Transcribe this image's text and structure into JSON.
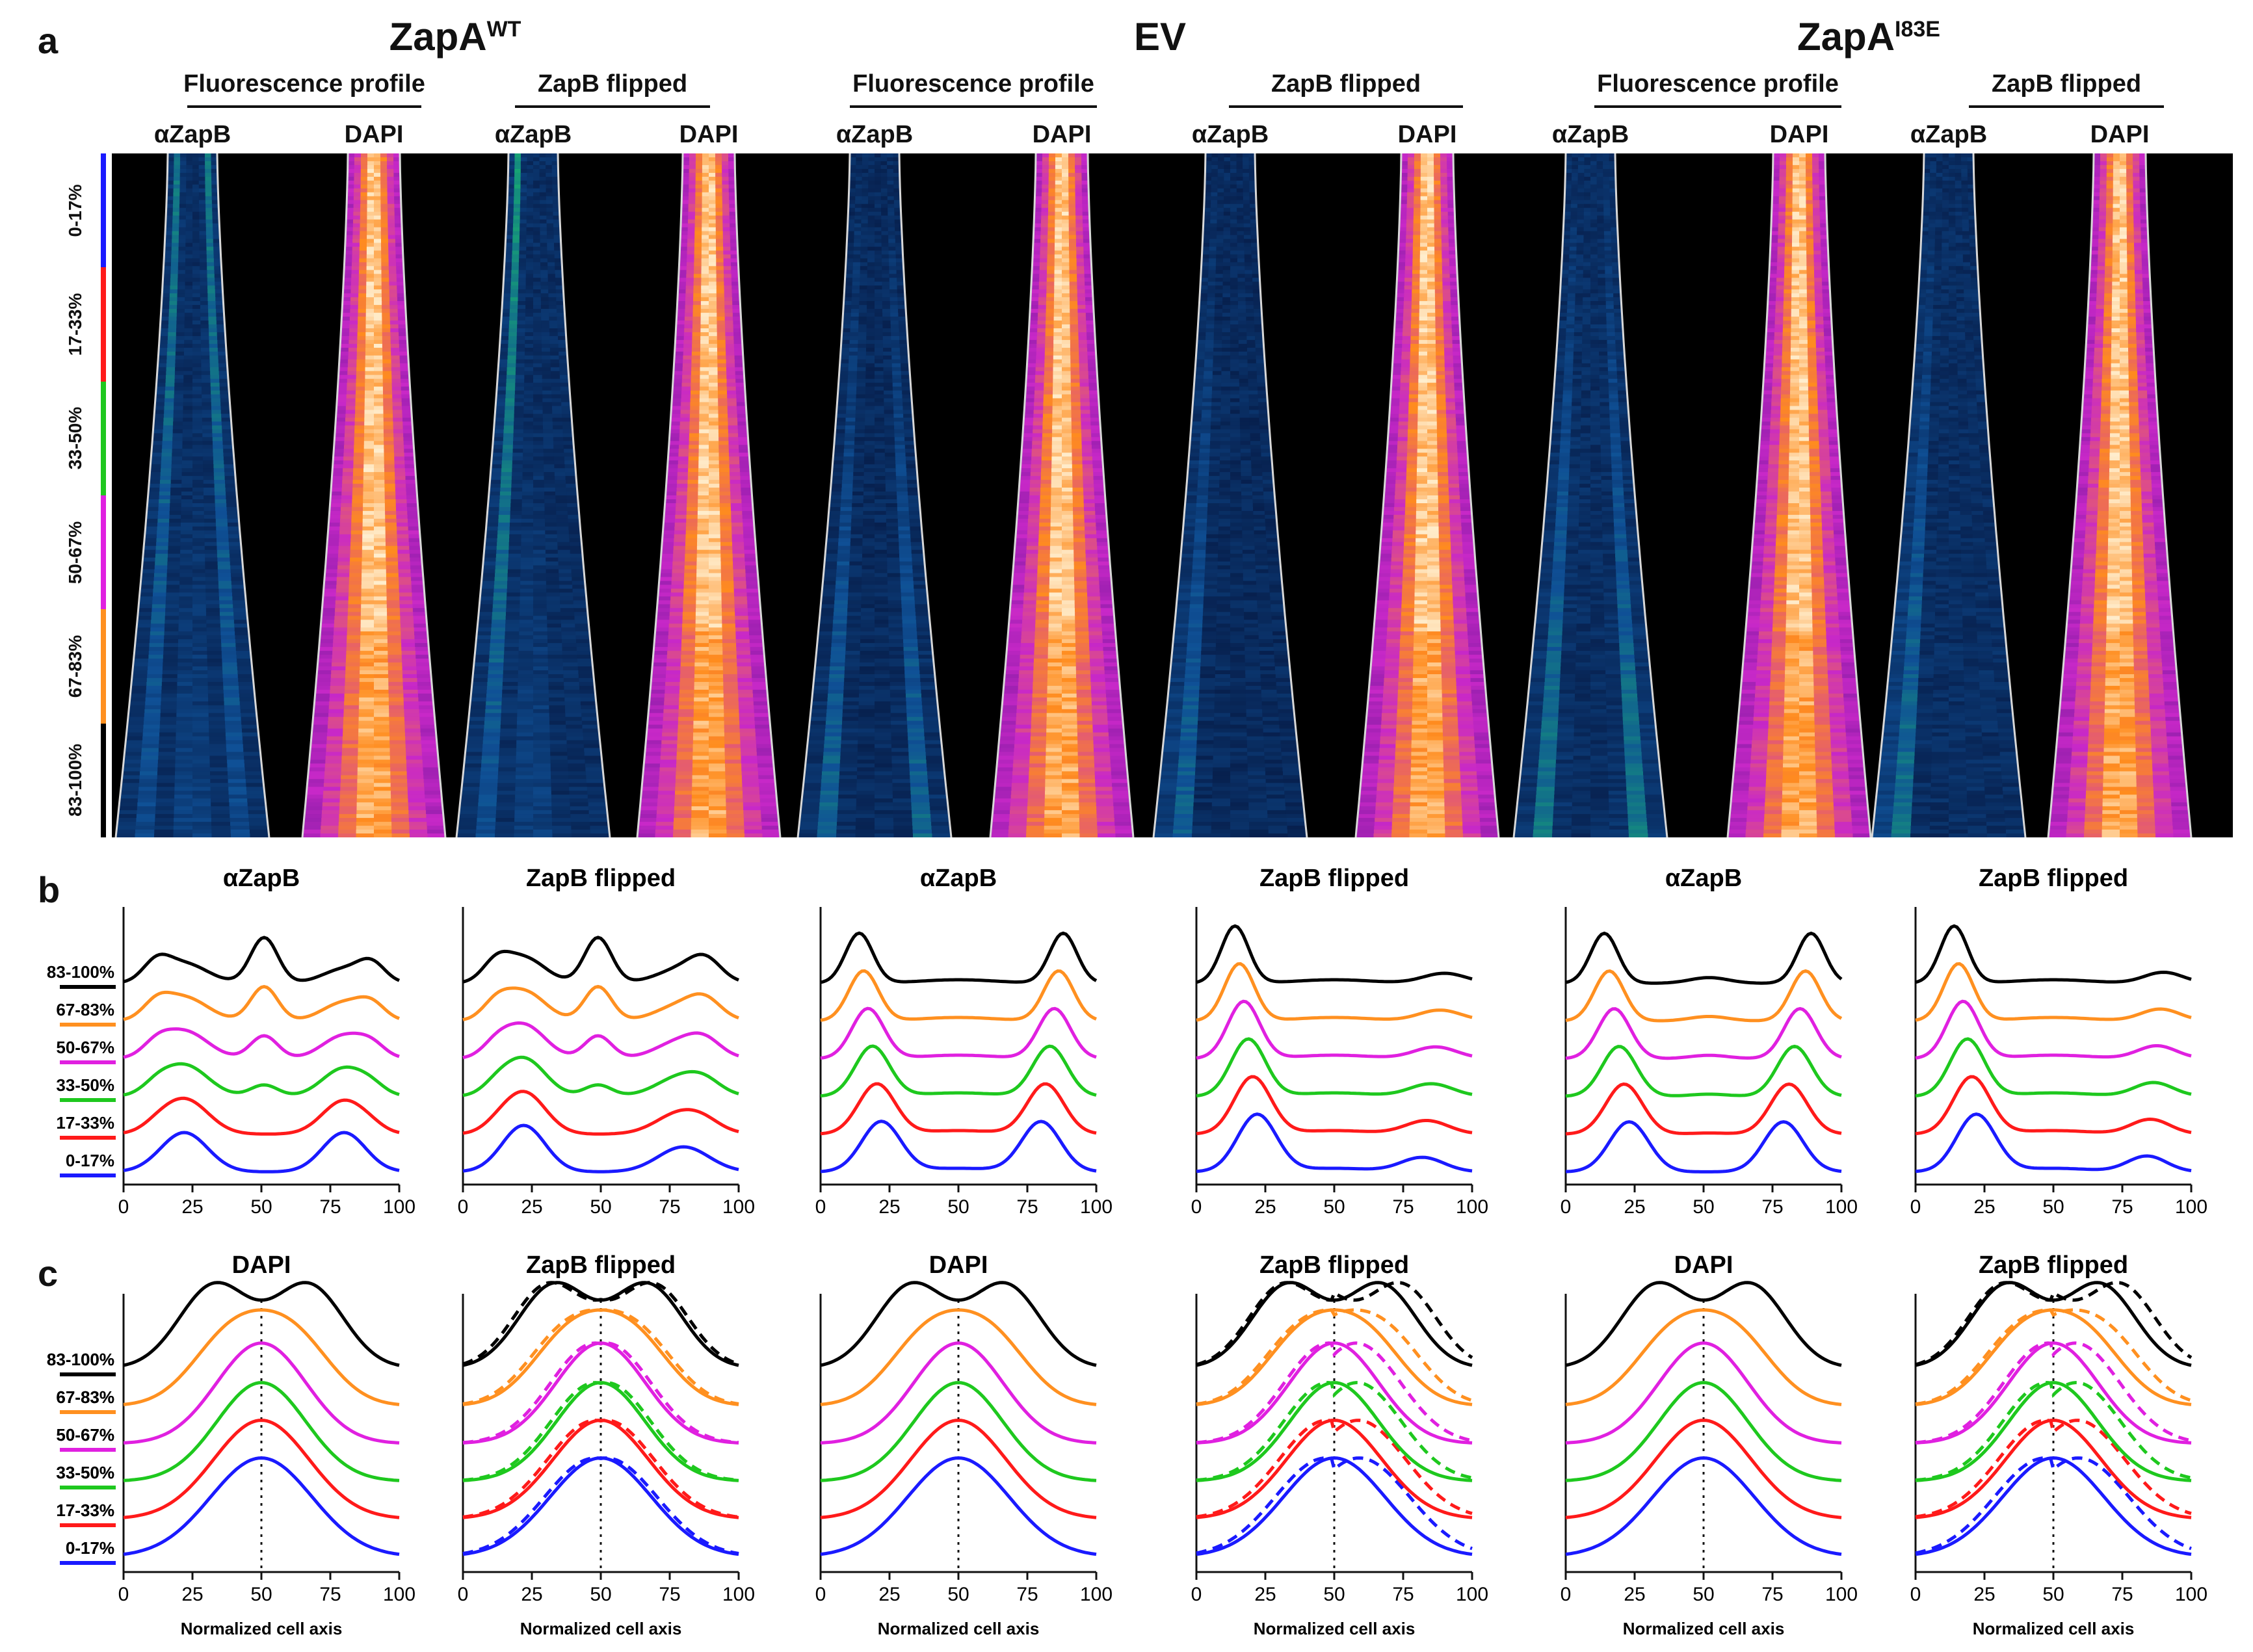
{
  "panels": {
    "a": "a",
    "b": "b",
    "c": "c"
  },
  "groups": [
    {
      "main": "ZapA",
      "sup": "WT"
    },
    {
      "main": "EV",
      "sup": ""
    },
    {
      "main": "ZapA",
      "sup": "I83E"
    }
  ],
  "subtitles": [
    "Fluorescence profile",
    "ZapB flipped",
    "Fluorescence profile",
    "ZapB flipped",
    "Fluorescence profile",
    "ZapB flipped"
  ],
  "column_labels": [
    "αZapB",
    "DAPI",
    "αZapB",
    "DAPI",
    "αZapB",
    "DAPI",
    "αZapB",
    "DAPI",
    "αZapB",
    "DAPI",
    "αZapB",
    "DAPI"
  ],
  "size_bins": [
    "0-17%",
    "17-33%",
    "33-50%",
    "50-67%",
    "67-83%",
    "83-100%"
  ],
  "bin_colors": [
    "#1a1aff",
    "#ff1a1a",
    "#1ec81e",
    "#e020e0",
    "#ff9020",
    "#000000"
  ],
  "plot_titles_b": [
    "αZapB",
    "ZapB flipped",
    "αZapB",
    "ZapB flipped",
    "αZapB",
    "ZapB flipped"
  ],
  "plot_titles_c": [
    "DAPI",
    "ZapB flipped",
    "DAPI",
    "ZapB flipped",
    "DAPI",
    "ZapB flipped"
  ],
  "x_axis_label": "Normalized cell axis",
  "x_ticks": [
    "0",
    "25",
    "50",
    "75",
    "100"
  ],
  "chart_data": [
    {
      "panel": "b",
      "type": "line",
      "title": "αZapB",
      "group": "ZapA WT",
      "x_range": [
        0,
        100
      ],
      "profile": "zapA_wt_zapB"
    },
    {
      "panel": "b",
      "type": "line",
      "title": "ZapB flipped",
      "group": "ZapA WT",
      "x_range": [
        0,
        100
      ],
      "profile": "zapA_wt_zapB_flipped"
    },
    {
      "panel": "b",
      "type": "line",
      "title": "αZapB",
      "group": "EV",
      "x_range": [
        0,
        100
      ],
      "profile": "ev_zapB"
    },
    {
      "panel": "b",
      "type": "line",
      "title": "ZapB flipped",
      "group": "EV",
      "x_range": [
        0,
        100
      ],
      "profile": "ev_zapB_flipped"
    },
    {
      "panel": "b",
      "type": "line",
      "title": "αZapB",
      "group": "ZapA I83E",
      "x_range": [
        0,
        100
      ],
      "profile": "i83e_zapB"
    },
    {
      "panel": "b",
      "type": "line",
      "title": "ZapB flipped",
      "group": "ZapA I83E",
      "x_range": [
        0,
        100
      ],
      "profile": "i83e_zapB_flipped"
    },
    {
      "panel": "c",
      "type": "line",
      "title": "DAPI",
      "group": "ZapA WT",
      "x_range": [
        0,
        100
      ],
      "profile": "dapi"
    },
    {
      "panel": "c",
      "type": "line",
      "title": "ZapB flipped",
      "group": "ZapA WT",
      "x_range": [
        0,
        100
      ],
      "profile": "dapi_flipped_small"
    },
    {
      "panel": "c",
      "type": "line",
      "title": "DAPI",
      "group": "EV",
      "x_range": [
        0,
        100
      ],
      "profile": "dapi"
    },
    {
      "panel": "c",
      "type": "line",
      "title": "ZapB flipped",
      "group": "EV",
      "x_range": [
        0,
        100
      ],
      "profile": "dapi_flipped_large"
    },
    {
      "panel": "c",
      "type": "line",
      "title": "DAPI",
      "group": "ZapA I83E",
      "x_range": [
        0,
        100
      ],
      "profile": "dapi"
    },
    {
      "panel": "c",
      "type": "line",
      "title": "ZapB flipped",
      "group": "ZapA I83E",
      "x_range": [
        0,
        100
      ],
      "profile": "dapi_flipped_large"
    }
  ]
}
